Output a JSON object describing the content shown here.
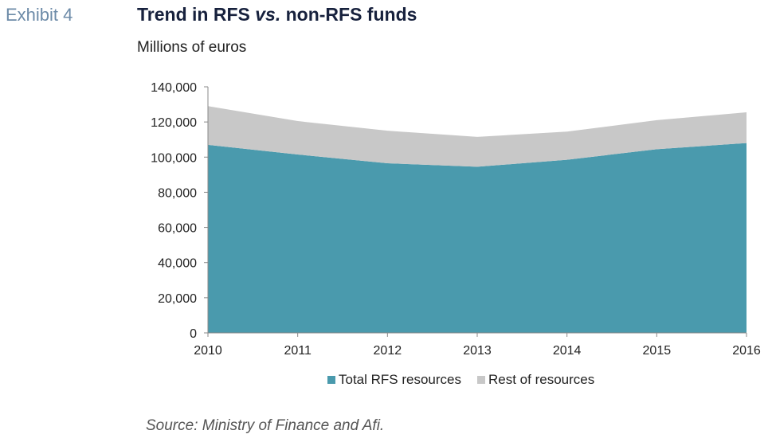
{
  "header": {
    "exhibit": "Exhibit 4",
    "title_pre": "Trend in RFS ",
    "title_em": "vs.",
    "title_post": " non-RFS funds",
    "subtitle": "Millions of euros"
  },
  "chart_data": {
    "type": "area",
    "stacked": true,
    "x": [
      "2010",
      "2011",
      "2012",
      "2013",
      "2014",
      "2015",
      "2016"
    ],
    "series": [
      {
        "name": "Total RFS resources",
        "values": [
          107000,
          101500,
          96500,
          94500,
          98500,
          104500,
          108000
        ],
        "color": "#4a9aad"
      },
      {
        "name": "Rest of resources",
        "values": [
          22000,
          19000,
          18500,
          17000,
          16000,
          16500,
          17500
        ],
        "color": "#c8c8c8"
      }
    ],
    "ylim": [
      0,
      140000
    ],
    "yticks": [
      "0",
      "20,000",
      "40,000",
      "60,000",
      "80,000",
      "100,000",
      "120,000",
      "140,000"
    ],
    "grid": false,
    "legend": "bottom"
  },
  "footer": {
    "source": "Source: Ministry of Finance and Afi."
  }
}
